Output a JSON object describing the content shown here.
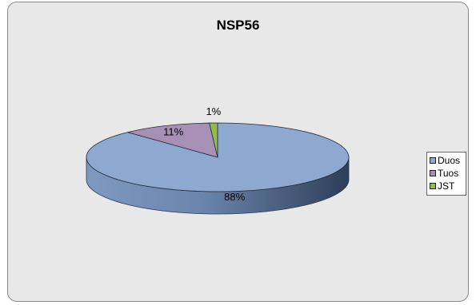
{
  "chart_data": {
    "type": "pie",
    "title": "NSP56",
    "slices": [
      {
        "label": "Duos",
        "value": 88,
        "display": "88%",
        "color": "#8ea8cf",
        "side_color": "#6f87ad"
      },
      {
        "label": "Tuos",
        "value": 11,
        "display": "11%",
        "color": "#a690b6",
        "side_color": "#7d6b8d"
      },
      {
        "label": "JST",
        "value": 1,
        "display": "1%",
        "color": "#96ba4c",
        "side_color": "#6f8a38"
      }
    ],
    "legend_position": "right"
  }
}
